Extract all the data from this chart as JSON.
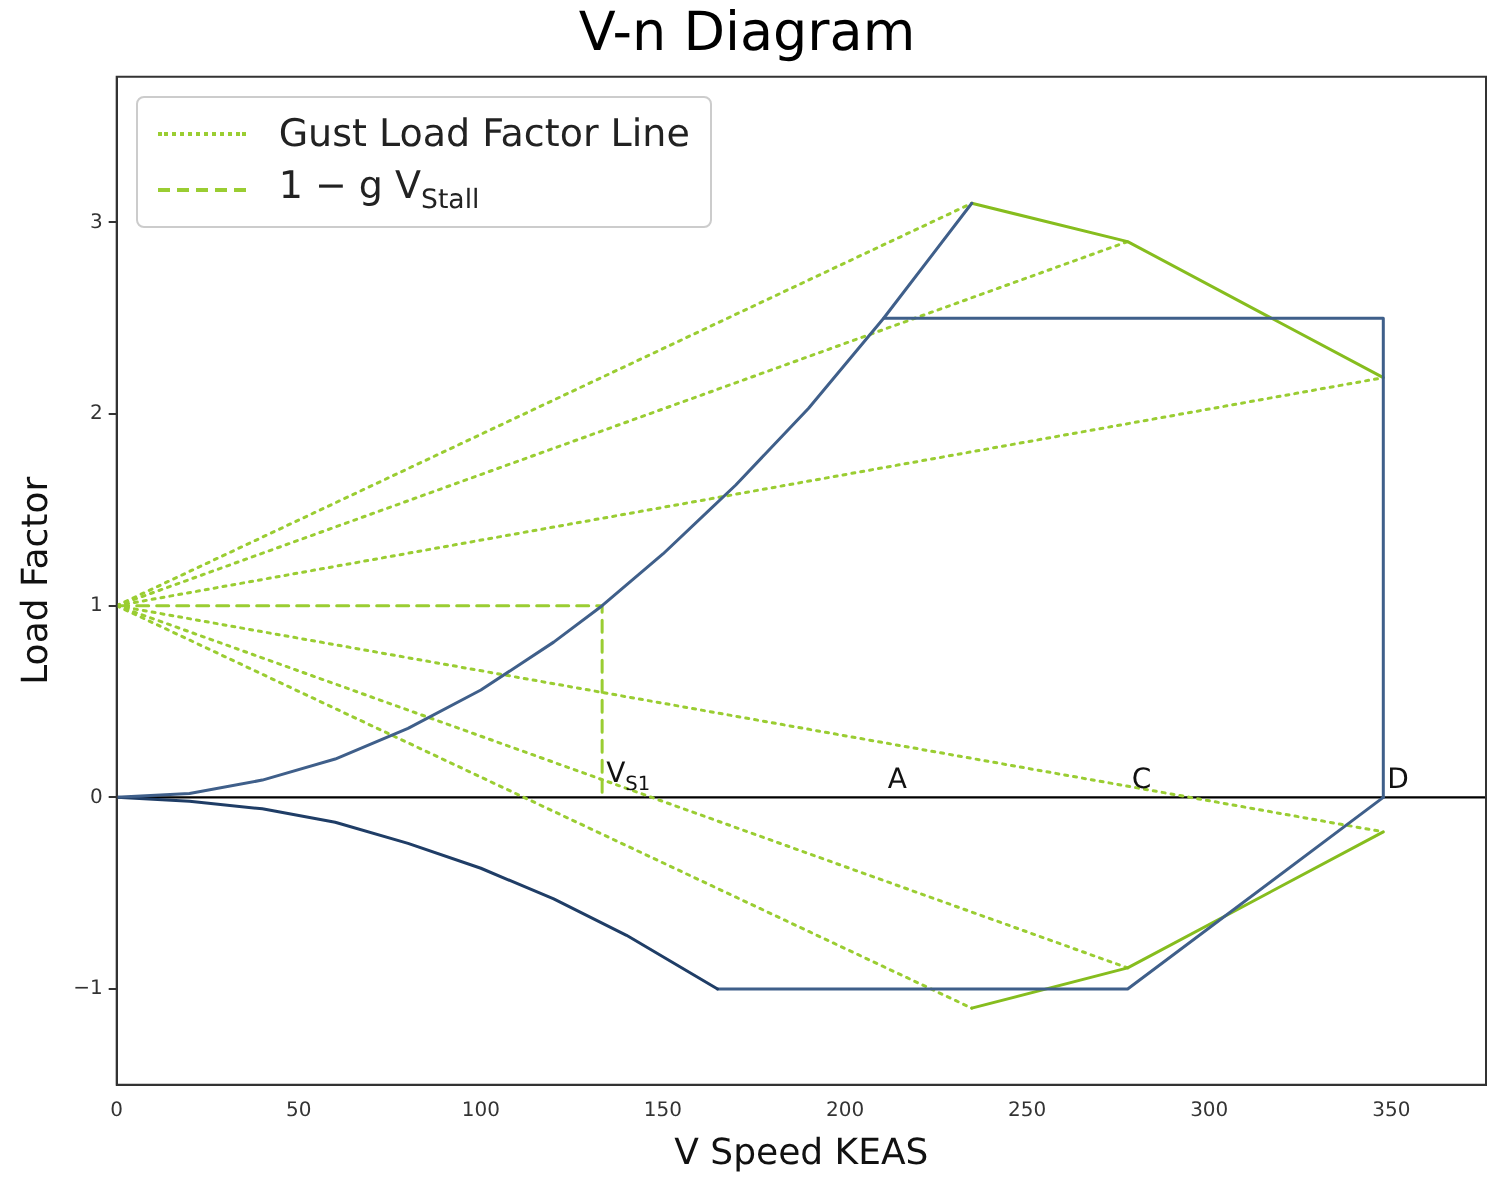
{
  "chart_data": {
    "type": "line",
    "title": "V-n Diagram",
    "xlabel": "V Speed KEAS",
    "ylabel": "Load Factor",
    "xlim": [
      0,
      376
    ],
    "ylim": [
      -1.5,
      3.76
    ],
    "xticks": [
      0,
      50,
      100,
      150,
      200,
      250,
      300,
      350
    ],
    "yticks": [
      {
        "value": -1,
        "label": "−1"
      },
      0,
      1,
      2,
      3
    ],
    "grid": false,
    "legend": "top left",
    "marker": "none",
    "series": [
      {
        "color": "#3f5f8a",
        "line_style": "solid",
        "x": [
          0,
          20,
          40,
          60,
          80,
          100,
          120,
          133.3,
          150,
          170,
          190,
          210.6,
          234.8
        ],
        "values": [
          0,
          0.02,
          0.09,
          0.2,
          0.36,
          0.56,
          0.81,
          1,
          1.27,
          1.63,
          2.03,
          2.5,
          3.1
        ]
      },
      {
        "color": "#1f3d66",
        "line_style": "solid",
        "x": [
          0,
          20,
          40,
          60,
          80,
          100,
          120,
          140,
          165
        ],
        "values": [
          0,
          -0.02,
          -0.06,
          -0.13,
          -0.24,
          -0.37,
          -0.53,
          -0.72,
          -1
        ]
      },
      {
        "color": "#3f5f8a",
        "line_style": "solid",
        "x": [
          210.6,
          347.8,
          347.8
        ],
        "values": [
          2.5,
          2.5,
          0
        ]
      },
      {
        "color": "#3f5f8a",
        "line_style": "solid",
        "x": [
          165,
          277.6,
          347.8
        ],
        "values": [
          -1,
          -1,
          0
        ]
      },
      {
        "color": "#86bd1e",
        "line_style": "solid",
        "x": [
          234.8,
          277.6,
          347.8
        ],
        "values": [
          3.1,
          2.9,
          2.19
        ]
      },
      {
        "color": "#86bd1e",
        "line_style": "solid",
        "x": [
          234.8,
          277.6,
          347.8
        ],
        "values": [
          -1.1,
          -0.89,
          -0.18
        ]
      },
      {
        "name": "Gust Load Factor Line",
        "color": "#9acd32",
        "line_style": "dotted",
        "x": [
          0,
          234.8
        ],
        "values": [
          1,
          3.1
        ]
      },
      {
        "color": "#9acd32",
        "line_style": "dotted",
        "x": [
          0,
          277.6
        ],
        "values": [
          1,
          2.9
        ]
      },
      {
        "color": "#9acd32",
        "line_style": "dotted",
        "x": [
          0,
          347.8
        ],
        "values": [
          1,
          2.19
        ]
      },
      {
        "color": "#9acd32",
        "line_style": "dotted",
        "x": [
          0,
          347.8
        ],
        "values": [
          1,
          -0.18
        ]
      },
      {
        "color": "#9acd32",
        "line_style": "dotted",
        "x": [
          0,
          277.6
        ],
        "values": [
          1,
          -0.89
        ]
      },
      {
        "color": "#9acd32",
        "line_style": "dotted",
        "x": [
          0,
          234.8
        ],
        "values": [
          1,
          -1.1
        ]
      },
      {
        "name": "1 − g V$_{Stall}$",
        "color": "#9acd32",
        "line_style": "dashed",
        "x": [
          0,
          133.3,
          133.3
        ],
        "values": [
          1,
          1,
          0
        ]
      }
    ],
    "ref_lines": [
      {
        "axis": "y",
        "value": 0,
        "color": "#000000"
      }
    ],
    "annotations": [
      {
        "text": "V$_{S1}$",
        "x": 133.3,
        "y": 0
      },
      {
        "text": "A",
        "x": 210.6,
        "y": 0
      },
      {
        "text": "C",
        "x": 277.6,
        "y": 0
      },
      {
        "text": "D",
        "x": 347.8,
        "y": 0
      }
    ]
  }
}
